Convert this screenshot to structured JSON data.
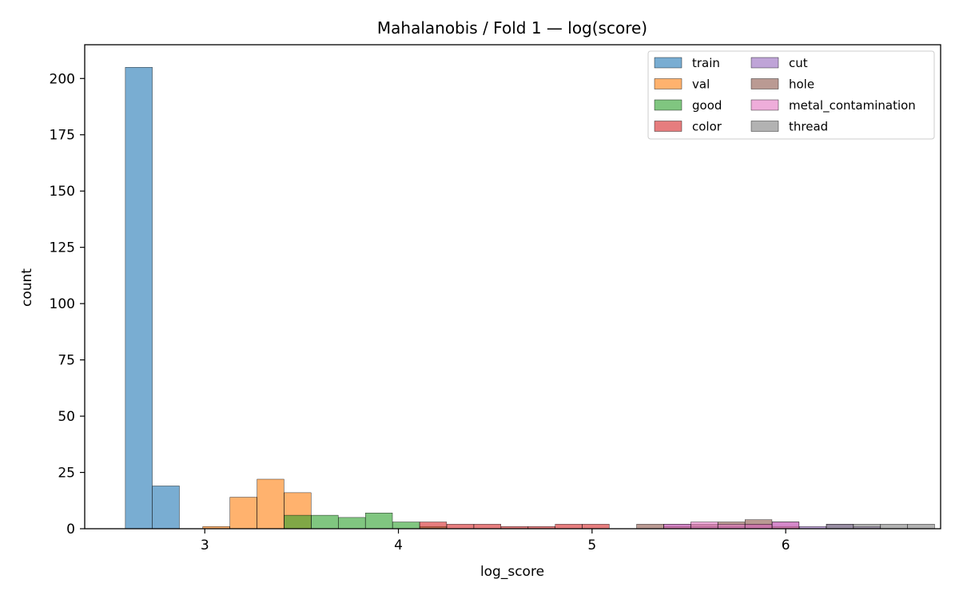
{
  "chart_data": {
    "type": "histogram",
    "title": "Mahalanobis / Fold 1 — log(score)",
    "xlabel": "log_score",
    "ylabel": "count",
    "xlim": [
      2.38,
      6.8
    ],
    "ylim": [
      0,
      215
    ],
    "xticks": [
      3,
      4,
      5,
      6
    ],
    "yticks": [
      0,
      25,
      50,
      75,
      100,
      125,
      150,
      175,
      200
    ],
    "bin_width": 0.139,
    "grid": false,
    "legend_position": "top-right",
    "series": [
      {
        "name": "train",
        "color": "#1f77b4",
        "bars": [
          {
            "x": 2.59,
            "count": 205
          },
          {
            "x": 2.73,
            "count": 19
          }
        ]
      },
      {
        "name": "val",
        "color": "#ff7f0e",
        "bars": [
          {
            "x": 2.99,
            "count": 1
          },
          {
            "x": 3.13,
            "count": 14
          },
          {
            "x": 3.27,
            "count": 22
          },
          {
            "x": 3.41,
            "count": 16
          }
        ]
      },
      {
        "name": "good",
        "color": "#2ca02c",
        "bars": [
          {
            "x": 3.41,
            "count": 6
          },
          {
            "x": 3.55,
            "count": 6
          },
          {
            "x": 3.69,
            "count": 5
          },
          {
            "x": 3.83,
            "count": 7
          },
          {
            "x": 3.97,
            "count": 3
          },
          {
            "x": 4.11,
            "count": 1
          }
        ]
      },
      {
        "name": "color",
        "color": "#d62728",
        "bars": [
          {
            "x": 4.11,
            "count": 3
          },
          {
            "x": 4.25,
            "count": 2
          },
          {
            "x": 4.39,
            "count": 2
          },
          {
            "x": 4.53,
            "count": 1
          },
          {
            "x": 4.67,
            "count": 1
          },
          {
            "x": 4.81,
            "count": 2
          },
          {
            "x": 4.95,
            "count": 2
          }
        ]
      },
      {
        "name": "cut",
        "color": "#9467bd",
        "bars": [
          {
            "x": 5.37,
            "count": 2
          },
          {
            "x": 5.51,
            "count": 1
          },
          {
            "x": 5.65,
            "count": 1
          },
          {
            "x": 5.79,
            "count": 2
          },
          {
            "x": 5.93,
            "count": 3
          },
          {
            "x": 6.07,
            "count": 1
          },
          {
            "x": 6.21,
            "count": 2
          },
          {
            "x": 6.35,
            "count": 1
          }
        ]
      },
      {
        "name": "hole",
        "color": "#8c564b",
        "bars": [
          {
            "x": 5.23,
            "count": 2
          },
          {
            "x": 5.37,
            "count": 1
          },
          {
            "x": 5.51,
            "count": 2
          },
          {
            "x": 5.65,
            "count": 3
          },
          {
            "x": 5.79,
            "count": 4
          },
          {
            "x": 5.93,
            "count": 1
          }
        ]
      },
      {
        "name": "metal_contamination",
        "color": "#e377c2",
        "bars": [
          {
            "x": 5.37,
            "count": 2
          },
          {
            "x": 5.51,
            "count": 3
          },
          {
            "x": 5.65,
            "count": 2
          },
          {
            "x": 5.79,
            "count": 2
          },
          {
            "x": 5.93,
            "count": 3
          }
        ]
      },
      {
        "name": "thread",
        "color": "#7f7f7f",
        "bars": [
          {
            "x": 6.21,
            "count": 2
          },
          {
            "x": 6.35,
            "count": 2
          },
          {
            "x": 6.49,
            "count": 2
          },
          {
            "x": 6.63,
            "count": 2
          }
        ]
      }
    ]
  }
}
